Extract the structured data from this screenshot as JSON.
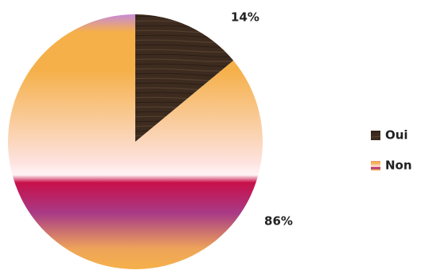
{
  "chart_data": {
    "type": "pie",
    "categories": [
      "Oui",
      "Non"
    ],
    "values": [
      14,
      86
    ],
    "value_labels": [
      "14%",
      "86%"
    ],
    "colors": [
      "#3d2b1f",
      "#f5b04a"
    ],
    "legend": "right"
  }
}
